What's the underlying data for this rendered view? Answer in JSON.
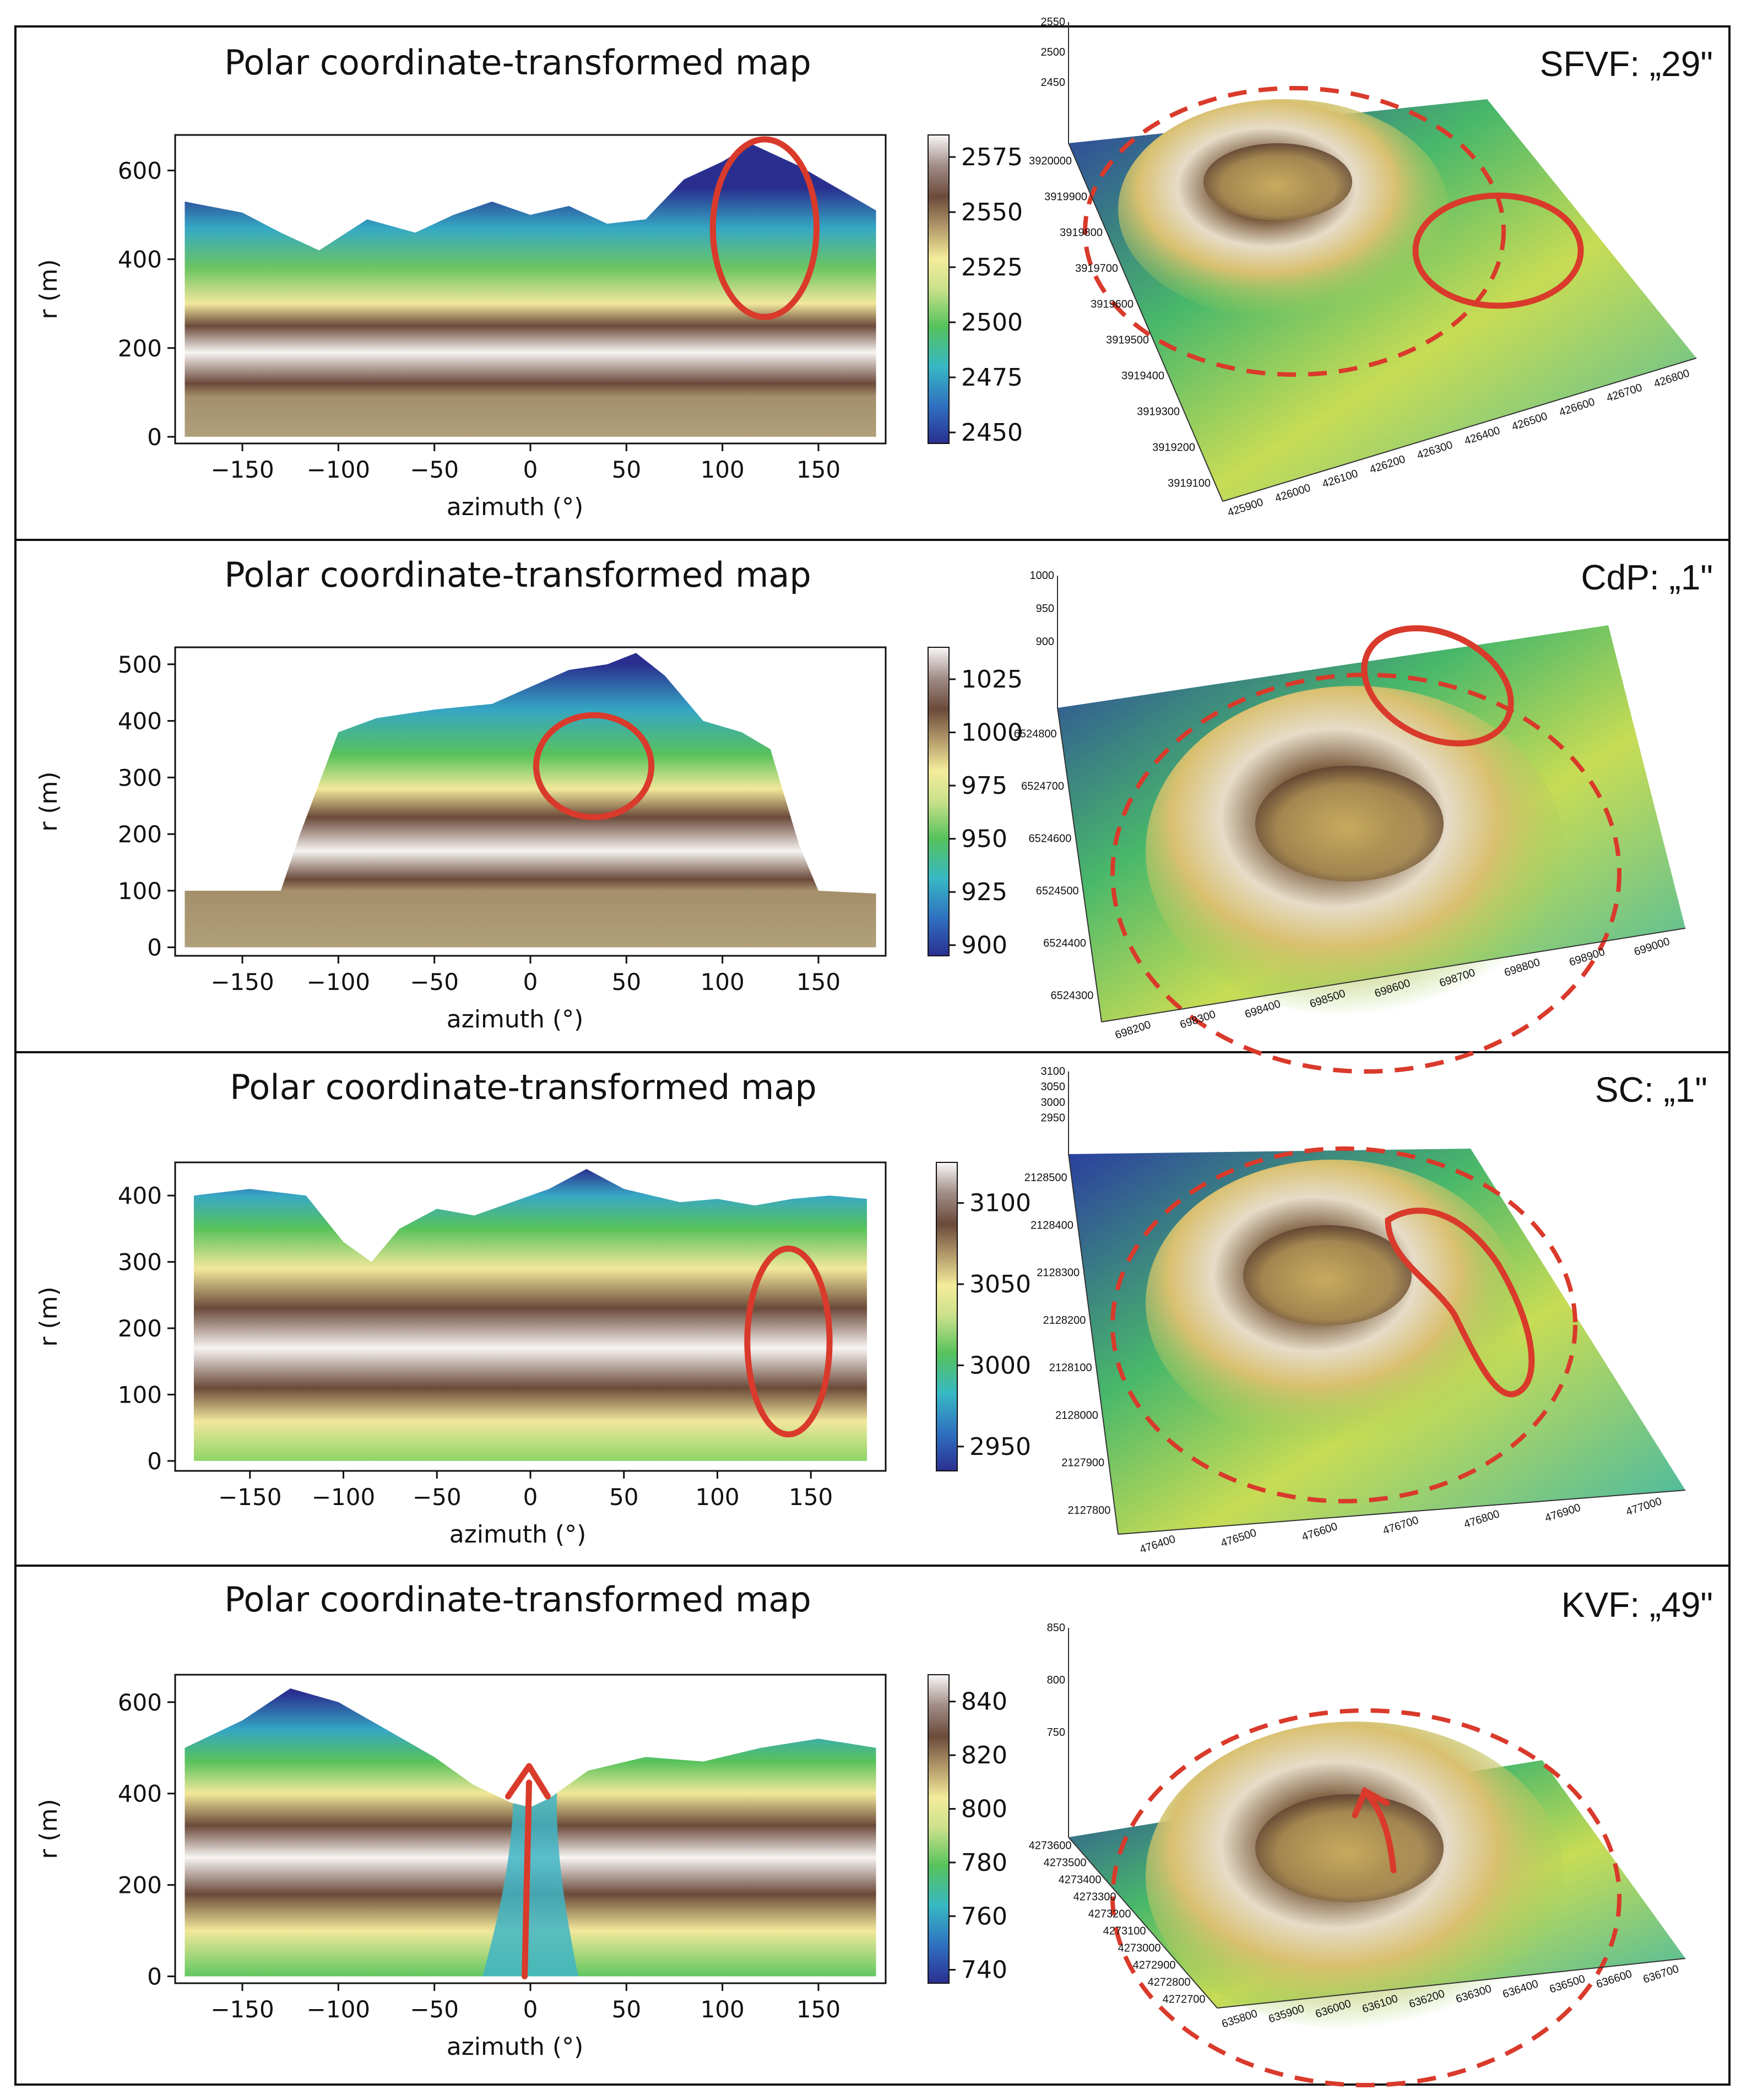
{
  "figure": {
    "panels": [
      {
        "id": "sfvf",
        "label": "SFVF: „29\"",
        "title": "Polar coordinate-transformed map",
        "xlabel": "azimuth (°)",
        "ylabel": "r (m)",
        "x_ticks": [
          "−150",
          "−100",
          "−50",
          "0",
          "50",
          "100",
          "150"
        ],
        "y_ticks": [
          "0",
          "200",
          "400",
          "600"
        ],
        "cbar_ticks": [
          "2450",
          "2475",
          "2500",
          "2525",
          "2550",
          "2575"
        ],
        "z_ticks": [
          "2550",
          "2500",
          "2450"
        ],
        "y3d_ticks": [
          "3920000",
          "3919900",
          "3919800",
          "3919700",
          "3919600",
          "3919500",
          "3919400",
          "3919300",
          "3919200",
          "3919100"
        ],
        "x3d_ticks": [
          "425900",
          "426000",
          "426100",
          "426200",
          "426300",
          "426400",
          "426500",
          "426600",
          "426700",
          "426800"
        ],
        "annotation": "ellipse"
      },
      {
        "id": "cdp",
        "label": "CdP: „1\"",
        "title": "Polar coordinate-transformed map",
        "xlabel": "azimuth (°)",
        "ylabel": "r (m)",
        "x_ticks": [
          "−150",
          "−100",
          "−50",
          "0",
          "50",
          "100",
          "150"
        ],
        "y_ticks": [
          "0",
          "100",
          "200",
          "300",
          "400",
          "500"
        ],
        "cbar_ticks": [
          "900",
          "925",
          "950",
          "975",
          "1000",
          "1025"
        ],
        "z_ticks": [
          "1000",
          "950",
          "900"
        ],
        "y3d_ticks": [
          "6524800",
          "6524700",
          "6524600",
          "6524500",
          "6524400",
          "6524300"
        ],
        "x3d_ticks": [
          "698200",
          "698300",
          "698400",
          "698500",
          "698600",
          "698700",
          "698800",
          "698900",
          "699000"
        ],
        "annotation": "ellipse"
      },
      {
        "id": "sc",
        "label": "SC: „1\"",
        "title": "Polar coordinate-transformed map",
        "xlabel": "azimuth (°)",
        "ylabel": "r (m)",
        "x_ticks": [
          "−150",
          "−100",
          "−50",
          "0",
          "50",
          "100",
          "150"
        ],
        "y_ticks": [
          "0",
          "100",
          "200",
          "300",
          "400"
        ],
        "cbar_ticks": [
          "2950",
          "3000",
          "3050",
          "3100"
        ],
        "z_ticks": [
          "3100",
          "3050",
          "3000",
          "2950"
        ],
        "y3d_ticks": [
          "2128500",
          "2128400",
          "2128300",
          "2128200",
          "2128100",
          "2128000",
          "2127900",
          "2127800"
        ],
        "x3d_ticks": [
          "476400",
          "476500",
          "476600",
          "476700",
          "476800",
          "476900",
          "477000"
        ],
        "annotation": "ellipse"
      },
      {
        "id": "kvf",
        "label": "KVF: „49\"",
        "title": "Polar coordinate-transformed map",
        "xlabel": "azimuth (°)",
        "ylabel": "r (m)",
        "x_ticks": [
          "−150",
          "−100",
          "−50",
          "0",
          "50",
          "100",
          "150"
        ],
        "y_ticks": [
          "0",
          "200",
          "400",
          "600"
        ],
        "cbar_ticks": [
          "740",
          "760",
          "780",
          "800",
          "820",
          "840"
        ],
        "z_ticks": [
          "850",
          "800",
          "750"
        ],
        "y3d_ticks": [
          "4273600",
          "4273500",
          "4273400",
          "4273300",
          "4273200",
          "4273100",
          "4273000",
          "4272900",
          "4272800",
          "4272700"
        ],
        "x3d_ticks": [
          "635800",
          "635900",
          "636000",
          "636100",
          "636200",
          "636300",
          "636400",
          "636500",
          "636600",
          "636700"
        ],
        "annotation": "arrow"
      }
    ]
  },
  "colors": {
    "annotation": "#d93a2b",
    "frame": "#111111",
    "deep": "#2a2f8f",
    "mid": "#4fc25a",
    "yellow": "#f4ec9b",
    "brown": "#6b4a3a",
    "white": "#f8f6f6",
    "tan": "#b0a07a"
  },
  "chart_data": [
    {
      "type": "heatmap",
      "title": "Polar coordinate-transformed map",
      "xlabel": "azimuth (°)",
      "ylabel": "r (m)",
      "xlim": [
        -185,
        185
      ],
      "ylim": [
        -15,
        680
      ],
      "colorbar_range": [
        2445,
        2585
      ],
      "colorbar_ticks": [
        2450,
        2475,
        2500,
        2525,
        2550,
        2575
      ],
      "outer_boundary": {
        "x": [
          -180,
          -150,
          -130,
          -110,
          -85,
          -60,
          -40,
          -20,
          0,
          20,
          40,
          60,
          80,
          100,
          115,
          125,
          140,
          160,
          180
        ],
        "y": [
          530,
          505,
          460,
          420,
          490,
          460,
          500,
          530,
          500,
          520,
          480,
          490,
          580,
          620,
          660,
          640,
          610,
          560,
          510
        ]
      },
      "brown_band_r": [
        [
          0,
          110
        ],
        [
          150,
          240
        ]
      ],
      "annotation": {
        "shape": "ellipse",
        "azimuth_center": 122,
        "r_center": 470,
        "azimuth_halfwidth": 27,
        "r_halfheight": 200
      }
    },
    {
      "type": "heatmap",
      "title": "Polar coordinate-transformed map",
      "xlabel": "azimuth (°)",
      "ylabel": "r (m)",
      "xlim": [
        -185,
        185
      ],
      "ylim": [
        -15,
        530
      ],
      "colorbar_range": [
        895,
        1040
      ],
      "colorbar_ticks": [
        900,
        925,
        950,
        975,
        1000,
        1025
      ],
      "outer_boundary": {
        "x": [
          -180,
          -130,
          -120,
          -100,
          -80,
          -50,
          -20,
          0,
          20,
          40,
          55,
          70,
          90,
          110,
          125,
          140,
          150,
          180
        ],
        "y": [
          100,
          100,
          200,
          380,
          405,
          420,
          430,
          460,
          490,
          500,
          520,
          480,
          400,
          380,
          350,
          180,
          100,
          95
        ]
      },
      "brown_band_r": [
        [
          0,
          100
        ],
        [
          120,
          240
        ]
      ],
      "annotation": {
        "shape": "ellipse",
        "azimuth_center": 33,
        "r_center": 320,
        "azimuth_halfwidth": 30,
        "r_halfheight": 90
      }
    },
    {
      "type": "heatmap",
      "title": "Polar coordinate-transformed map",
      "xlabel": "azimuth (°)",
      "ylabel": "r (m)",
      "xlim": [
        -190,
        190
      ],
      "ylim": [
        -15,
        450
      ],
      "colorbar_range": [
        2935,
        3125
      ],
      "colorbar_ticks": [
        2950,
        3000,
        3050,
        3100
      ],
      "outer_boundary": {
        "x": [
          -180,
          -150,
          -120,
          -100,
          -85,
          -70,
          -50,
          -30,
          -10,
          10,
          30,
          50,
          80,
          100,
          120,
          140,
          160,
          180
        ],
        "y": [
          400,
          410,
          400,
          330,
          300,
          350,
          380,
          370,
          390,
          410,
          440,
          410,
          390,
          395,
          385,
          395,
          400,
          395
        ]
      },
      "brown_band_r": [
        [
          90,
          260
        ]
      ],
      "annotation": {
        "shape": "ellipse",
        "azimuth_center": 138,
        "r_center": 180,
        "azimuth_halfwidth": 22,
        "r_halfheight": 140
      }
    },
    {
      "type": "heatmap",
      "title": "Polar coordinate-transformed map",
      "xlabel": "azimuth (°)",
      "ylabel": "r (m)",
      "xlim": [
        -185,
        185
      ],
      "ylim": [
        -15,
        660
      ],
      "colorbar_range": [
        735,
        850
      ],
      "colorbar_ticks": [
        740,
        760,
        780,
        800,
        820,
        840
      ],
      "outer_boundary": {
        "x": [
          -180,
          -150,
          -125,
          -100,
          -75,
          -50,
          -30,
          -10,
          0,
          10,
          30,
          60,
          90,
          120,
          150,
          180
        ],
        "y": [
          500,
          560,
          630,
          600,
          540,
          480,
          420,
          380,
          370,
          390,
          450,
          480,
          470,
          500,
          520,
          500
        ]
      },
      "brown_band_r": [
        [
          150,
          360
        ]
      ],
      "annotation": {
        "shape": "arrow",
        "azimuth": -3,
        "r_from": 0,
        "r_to": 460
      }
    }
  ]
}
